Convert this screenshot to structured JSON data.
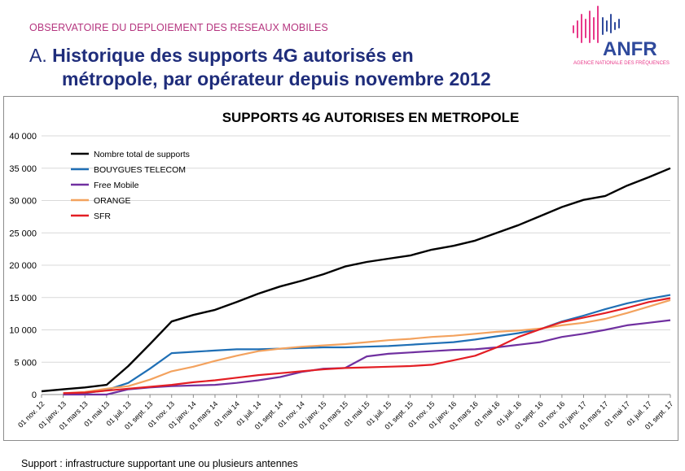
{
  "header": {
    "org": "OBSERVATOIRE DU DEPLOIEMENT DES RESEAUX MOBILES",
    "title_prefix": "A.",
    "title_line1": "Historique des supports 4G autorisés en",
    "title_line2": "métropole, par opérateur depuis novembre 2012"
  },
  "logo": {
    "name": "ANFR",
    "subtitle": "AGENCE NATIONALE DES FRÉQUENCES",
    "colors": [
      "#e8398a",
      "#2f4a9c"
    ]
  },
  "footer": {
    "note": "Support : infrastructure supportant une ou plusieurs antennes"
  },
  "chart_data": {
    "type": "line",
    "title": "SUPPORTS 4G AUTORISES EN METROPOLE",
    "xlabel": "",
    "ylabel": "",
    "ylim": [
      0,
      40000
    ],
    "yticks": [
      "0",
      "5 000",
      "10 000",
      "15 000",
      "20 000",
      "25 000",
      "30 000",
      "35 000",
      "40 000"
    ],
    "grid": "horizontal",
    "legend_position": "top-left inside",
    "categories": [
      "01 nov. 12",
      "01 janv. 13",
      "01 mars 13",
      "01 mai 13",
      "01 juil. 13",
      "01 sept. 13",
      "01 nov. 13",
      "01 janv. 14",
      "01 mars 14",
      "01 mai 14",
      "01 juil. 14",
      "01 sept. 14",
      "01 nov. 14",
      "01 janv. 15",
      "01 mars 15",
      "01 mai 15",
      "01 juil. 15",
      "01 sept. 15",
      "01 nov. 15",
      "01 janv. 16",
      "01 mars 16",
      "01 mai 16",
      "01 juil. 16",
      "01 sept. 16",
      "01 nov. 16",
      "01 janv. 17",
      "01 mars 17",
      "01 mai 17",
      "01 juil. 17",
      "01 sept. 17"
    ],
    "series": [
      {
        "name": "Nombre total de supports",
        "color": "#000000",
        "values": [
          500,
          800,
          1100,
          1500,
          4400,
          7800,
          11300,
          12300,
          13100,
          14300,
          15600,
          16700,
          17600,
          18600,
          19800,
          20500,
          21000,
          21500,
          22400,
          23000,
          23800,
          25000,
          26200,
          27600,
          29000,
          30100,
          30700,
          32300,
          33600,
          35000
        ]
      },
      {
        "name": "BOUYGUES TELECOM",
        "color": "#1f6fb5",
        "values": [
          null,
          100,
          200,
          700,
          1800,
          4000,
          6400,
          6600,
          6800,
          7000,
          7000,
          7100,
          7200,
          7300,
          7300,
          7400,
          7500,
          7700,
          7900,
          8100,
          8500,
          9000,
          9500,
          10100,
          11300,
          12200,
          13200,
          14100,
          14800,
          15400
        ]
      },
      {
        "name": "Free Mobile",
        "color": "#7030a0",
        "values": [
          null,
          0,
          0,
          0,
          800,
          1100,
          1300,
          1400,
          1500,
          1800,
          2200,
          2700,
          3500,
          4000,
          4100,
          5900,
          6300,
          6500,
          6700,
          6900,
          7000,
          7300,
          7700,
          8100,
          8900,
          9400,
          10000,
          10700,
          11100,
          11500
        ]
      },
      {
        "name": "ORANGE",
        "color": "#f3a25e",
        "values": [
          null,
          200,
          400,
          900,
          1300,
          2300,
          3600,
          4300,
          5200,
          6000,
          6700,
          7100,
          7400,
          7600,
          7800,
          8100,
          8400,
          8600,
          8900,
          9100,
          9400,
          9700,
          9900,
          10200,
          10700,
          11100,
          11700,
          12600,
          13600,
          14600
        ]
      },
      {
        "name": "SFR",
        "color": "#e31e24",
        "values": [
          null,
          200,
          300,
          600,
          900,
          1200,
          1500,
          1900,
          2200,
          2600,
          3000,
          3300,
          3600,
          3900,
          4100,
          4200,
          4300,
          4400,
          4600,
          5300,
          6000,
          7300,
          8900,
          10100,
          11200,
          11900,
          12600,
          13400,
          14300,
          14900
        ]
      }
    ]
  }
}
